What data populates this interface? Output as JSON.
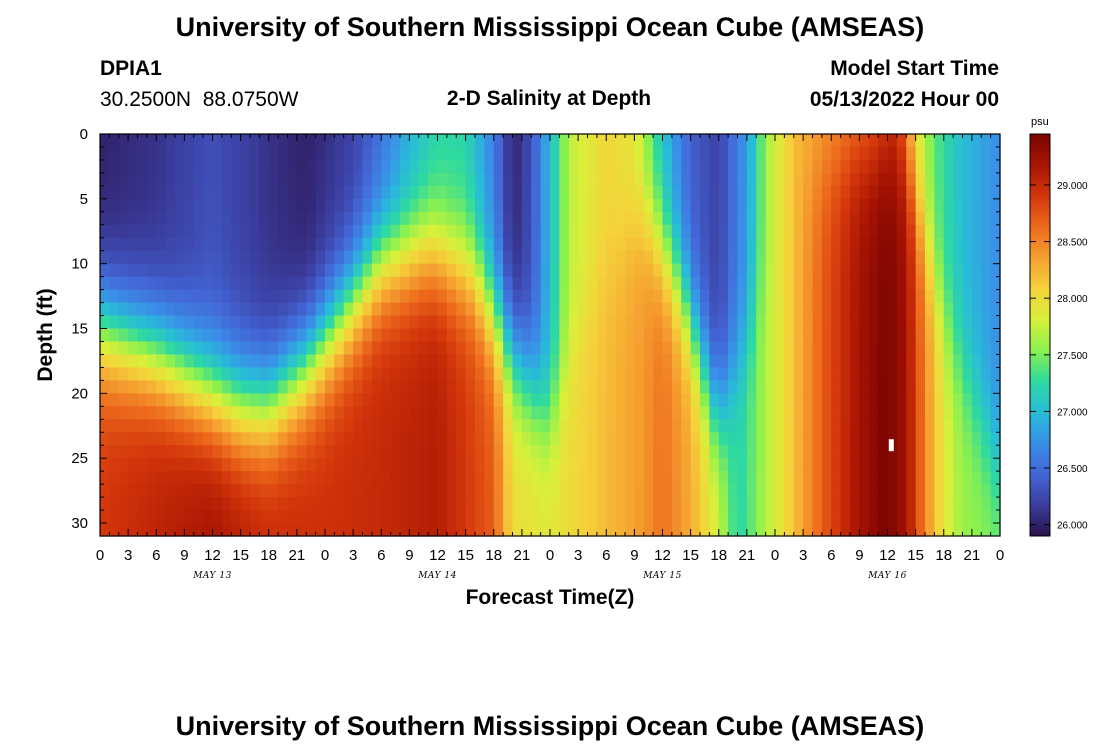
{
  "header": {
    "title": "University of Southern Mississippi Ocean Cube (AMSEAS)",
    "station_id": "DPIA1",
    "station_coords": "30.2500N  88.0750W",
    "plot_title": "2-D Salinity at Depth",
    "model_start_label": "Model Start Time",
    "model_start_value": "05/13/2022 Hour 00"
  },
  "footer": {
    "title": "University of Southern Mississippi Ocean Cube (AMSEAS)"
  },
  "chart_data": {
    "type": "heatmap",
    "title": "2-D Salinity at Depth",
    "xlabel": "Forecast Time(Z)",
    "ylabel": "Depth (ft)",
    "x_range_hours": [
      0,
      96
    ],
    "y_range_ft": [
      0,
      31
    ],
    "x_tick_labels": [
      "0",
      "3",
      "6",
      "9",
      "12",
      "15",
      "18",
      "21",
      "0",
      "3",
      "6",
      "9",
      "12",
      "15",
      "18",
      "21",
      "0",
      "3",
      "6",
      "9",
      "12",
      "15",
      "18",
      "21",
      "0",
      "3",
      "6",
      "9",
      "12",
      "15",
      "18",
      "21",
      "0"
    ],
    "y_ticks": [
      0,
      5,
      10,
      15,
      20,
      25,
      30
    ],
    "date_labels": [
      {
        "label": "MAY 13",
        "hour": 12
      },
      {
        "label": "MAY 14",
        "hour": 36
      },
      {
        "label": "MAY 15",
        "hour": 60
      },
      {
        "label": "MAY 16",
        "hour": 84
      }
    ],
    "colorbar": {
      "unit": "psu",
      "min": 25.9,
      "max": 29.45,
      "ticks": [
        "26.000",
        "26.500",
        "27.000",
        "27.500",
        "28.000",
        "28.500",
        "29.000"
      ],
      "colors": [
        "#2b124c",
        "#3b3d9e",
        "#4366d6",
        "#3a8fe8",
        "#28bcd8",
        "#2ed9a0",
        "#8af04f",
        "#d8f03a",
        "#f5d23a",
        "#f5a030",
        "#ed6a1c",
        "#d3360b",
        "#a81403",
        "#7a0403"
      ]
    },
    "surface_profile_psu": [
      {
        "hour": 0,
        "value": 26.0
      },
      {
        "hour": 6,
        "value": 26.1
      },
      {
        "hour": 12,
        "value": 26.3
      },
      {
        "hour": 18,
        "value": 26.1
      },
      {
        "hour": 22,
        "value": 26.0
      },
      {
        "hour": 27,
        "value": 26.2
      },
      {
        "hour": 30,
        "value": 26.5
      },
      {
        "hour": 33,
        "value": 26.9
      },
      {
        "hour": 36,
        "value": 27.2
      },
      {
        "hour": 39,
        "value": 27.2
      },
      {
        "hour": 42,
        "value": 26.6
      },
      {
        "hour": 44,
        "value": 26.0
      },
      {
        "hour": 46,
        "value": 26.3
      },
      {
        "hour": 48,
        "value": 27.0
      },
      {
        "hour": 50,
        "value": 27.7
      },
      {
        "hour": 54,
        "value": 28.05
      },
      {
        "hour": 57,
        "value": 27.9
      },
      {
        "hour": 59,
        "value": 27.3
      },
      {
        "hour": 61,
        "value": 26.8
      },
      {
        "hour": 63,
        "value": 26.4
      },
      {
        "hour": 66,
        "value": 26.2
      },
      {
        "hour": 69,
        "value": 26.8
      },
      {
        "hour": 71,
        "value": 27.6
      },
      {
        "hour": 74,
        "value": 28.2
      },
      {
        "hour": 78,
        "value": 28.4
      },
      {
        "hour": 82,
        "value": 28.6
      },
      {
        "hour": 85,
        "value": 28.9
      },
      {
        "hour": 87,
        "value": 27.9
      },
      {
        "hour": 89,
        "value": 27.4
      },
      {
        "hour": 92,
        "value": 27.0
      },
      {
        "hour": 96,
        "value": 26.7
      }
    ],
    "bottom_profile_psu": [
      {
        "hour": 0,
        "value": 28.9
      },
      {
        "hour": 12,
        "value": 29.2
      },
      {
        "hour": 18,
        "value": 29.0
      },
      {
        "hour": 24,
        "value": 28.95
      },
      {
        "hour": 30,
        "value": 29.0
      },
      {
        "hour": 36,
        "value": 29.1
      },
      {
        "hour": 42,
        "value": 28.7
      },
      {
        "hour": 44,
        "value": 28.0
      },
      {
        "hour": 48,
        "value": 27.9
      },
      {
        "hour": 54,
        "value": 28.2
      },
      {
        "hour": 58,
        "value": 28.4
      },
      {
        "hour": 60,
        "value": 28.6
      },
      {
        "hour": 63,
        "value": 28.3
      },
      {
        "hour": 66,
        "value": 27.8
      },
      {
        "hour": 68,
        "value": 27.2
      },
      {
        "hour": 70,
        "value": 27.5
      },
      {
        "hour": 73,
        "value": 28.0
      },
      {
        "hour": 77,
        "value": 28.7
      },
      {
        "hour": 81,
        "value": 29.2
      },
      {
        "hour": 84,
        "value": 29.45
      },
      {
        "hour": 86,
        "value": 29.2
      },
      {
        "hour": 88,
        "value": 28.5
      },
      {
        "hour": 90,
        "value": 27.9
      },
      {
        "hour": 92,
        "value": 27.6
      },
      {
        "hour": 96,
        "value": 27.5
      }
    ],
    "halocline_depth_ft": [
      {
        "hour": 0,
        "value": 15
      },
      {
        "hour": 6,
        "value": 17
      },
      {
        "hour": 12,
        "value": 20
      },
      {
        "hour": 15,
        "value": 21
      },
      {
        "hour": 18,
        "value": 21
      },
      {
        "hour": 22,
        "value": 18
      },
      {
        "hour": 27,
        "value": 13
      },
      {
        "hour": 30,
        "value": 10
      },
      {
        "hour": 35,
        "value": 9
      },
      {
        "hour": 40,
        "value": 11
      },
      {
        "hour": 44,
        "value": 17
      },
      {
        "hour": 48,
        "value": 22
      },
      {
        "hour": 54,
        "value": 10
      },
      {
        "hour": 58,
        "value": 6
      },
      {
        "hour": 62,
        "value": 12
      },
      {
        "hour": 66,
        "value": 22
      },
      {
        "hour": 70,
        "value": 14
      },
      {
        "hour": 74,
        "value": 4
      },
      {
        "hour": 80,
        "value": 2
      },
      {
        "hour": 86,
        "value": 2
      },
      {
        "hour": 90,
        "value": 14
      },
      {
        "hour": 96,
        "value": 26
      }
    ],
    "marker": {
      "hour": 84.4,
      "depth_ft": 24.0,
      "color": "#ffffff"
    }
  }
}
